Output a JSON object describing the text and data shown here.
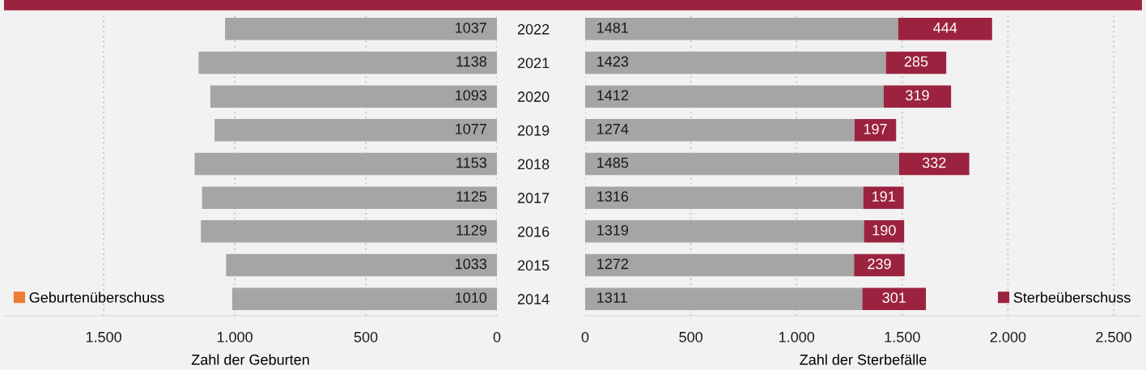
{
  "chart_data": [
    {
      "type": "bar",
      "orientation": "horizontal",
      "stacked": true,
      "xlabel": "Zahl der Geburten",
      "categories": [
        "2022",
        "2021",
        "2020",
        "2019",
        "2018",
        "2017",
        "2016",
        "2015",
        "2014"
      ],
      "series": [
        {
          "color": "#a5a5a5",
          "values": [
            1037,
            1138,
            1093,
            1077,
            1153,
            1125,
            1129,
            1033,
            1010
          ]
        },
        {
          "name": "Geburtenüberschuss",
          "color": "#ed7d31",
          "values": [
            null,
            null,
            null,
            null,
            null,
            null,
            null,
            null,
            null
          ]
        }
      ],
      "xlim": [
        1880,
        0
      ],
      "xticks": [
        {
          "value": 1500,
          "label": "1.500"
        },
        {
          "value": 1000,
          "label": "1.000"
        },
        500,
        0
      ],
      "grid": "x",
      "legend": "bottom left",
      "data_labels": true
    },
    {
      "type": "bar",
      "orientation": "horizontal",
      "stacked": true,
      "xlabel": "Zahl der Sterbefälle",
      "categories": [
        "2022",
        "2021",
        "2020",
        "2019",
        "2018",
        "2017",
        "2016",
        "2015",
        "2014"
      ],
      "series": [
        {
          "color": "#a5a5a5",
          "values": [
            1481,
            1423,
            1412,
            1274,
            1485,
            1316,
            1319,
            1272,
            1311
          ]
        },
        {
          "name": "Sterbeüberschuss",
          "color": "#9b2340",
          "values": [
            444,
            285,
            319,
            197,
            332,
            191,
            190,
            239,
            301
          ]
        }
      ],
      "xlim": [
        0,
        2630
      ],
      "xticks": [
        0,
        500,
        {
          "value": 1000,
          "label": "1.000"
        },
        {
          "value": 1500,
          "label": "1.500"
        },
        {
          "value": 2000,
          "label": "2.000"
        },
        {
          "value": 2500,
          "label": "2.500"
        }
      ],
      "grid": "x",
      "legend": "bottom right",
      "tick_labels": "x",
      "data_labels": true
    }
  ]
}
